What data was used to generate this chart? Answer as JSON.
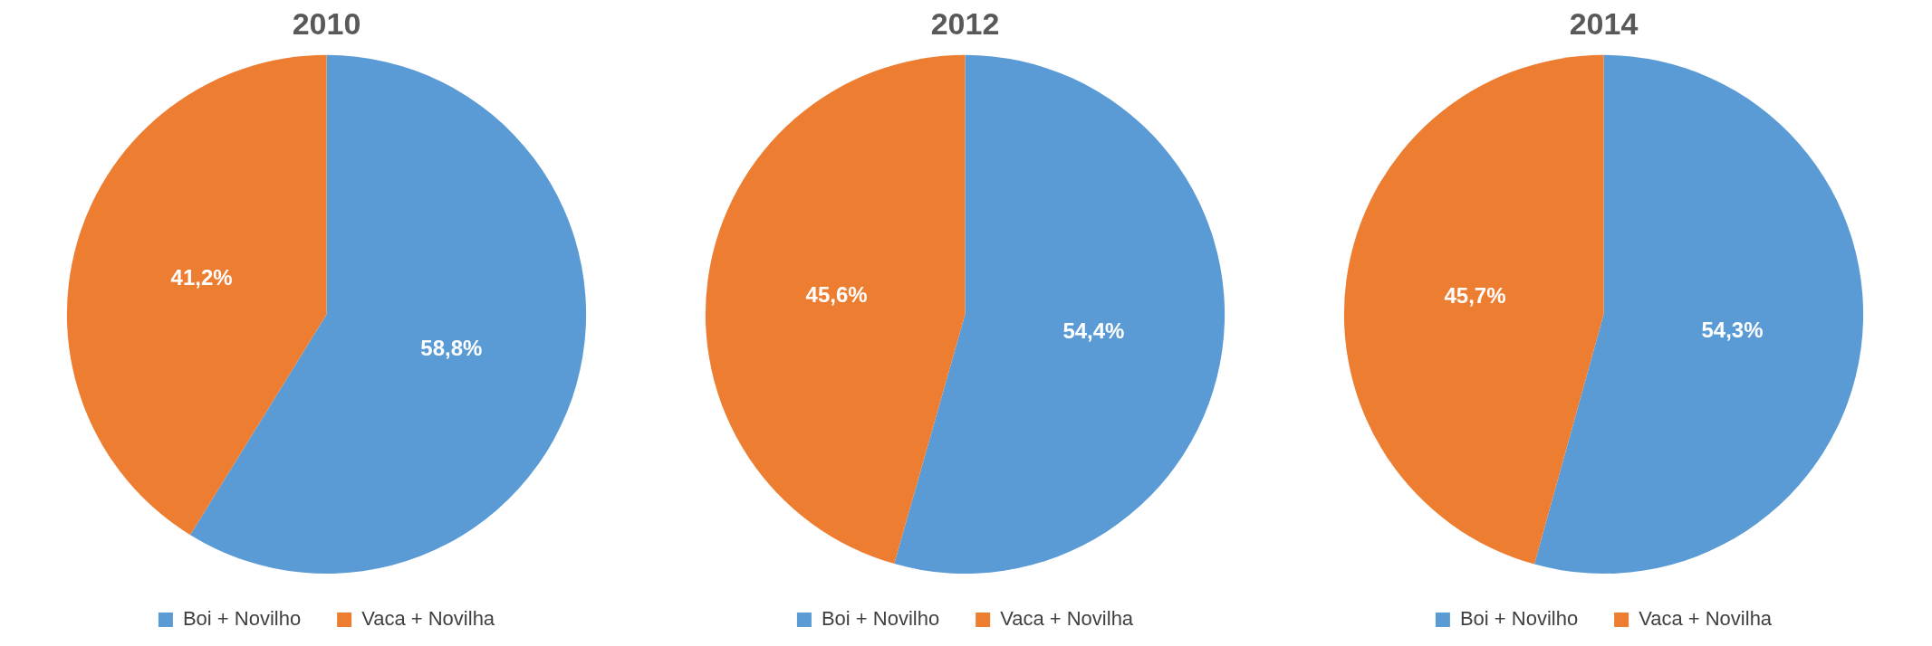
{
  "chart_data": [
    {
      "type": "pie",
      "title": "2010",
      "categories": [
        "Boi + Novilho",
        "Vaca + Novilha"
      ],
      "values": [
        58.8,
        41.2
      ],
      "colors": [
        "#5b9bd5",
        "#ed7d31"
      ],
      "value_labels": [
        "58,8%",
        "41,2%"
      ],
      "legend": "bottom"
    },
    {
      "type": "pie",
      "title": "2012",
      "categories": [
        "Boi + Novilho",
        "Vaca + Novilha"
      ],
      "values": [
        54.4,
        45.6
      ],
      "colors": [
        "#5b9bd5",
        "#ed7d31"
      ],
      "value_labels": [
        "54,4%",
        "45,6%"
      ],
      "legend": "bottom"
    },
    {
      "type": "pie",
      "title": "2014",
      "categories": [
        "Boi + Novilho",
        "Vaca + Novilha"
      ],
      "values": [
        54.3,
        45.7
      ],
      "colors": [
        "#5b9bd5",
        "#ed7d31"
      ],
      "value_labels": [
        "54,3%",
        "45,7%"
      ],
      "legend": "bottom"
    }
  ]
}
